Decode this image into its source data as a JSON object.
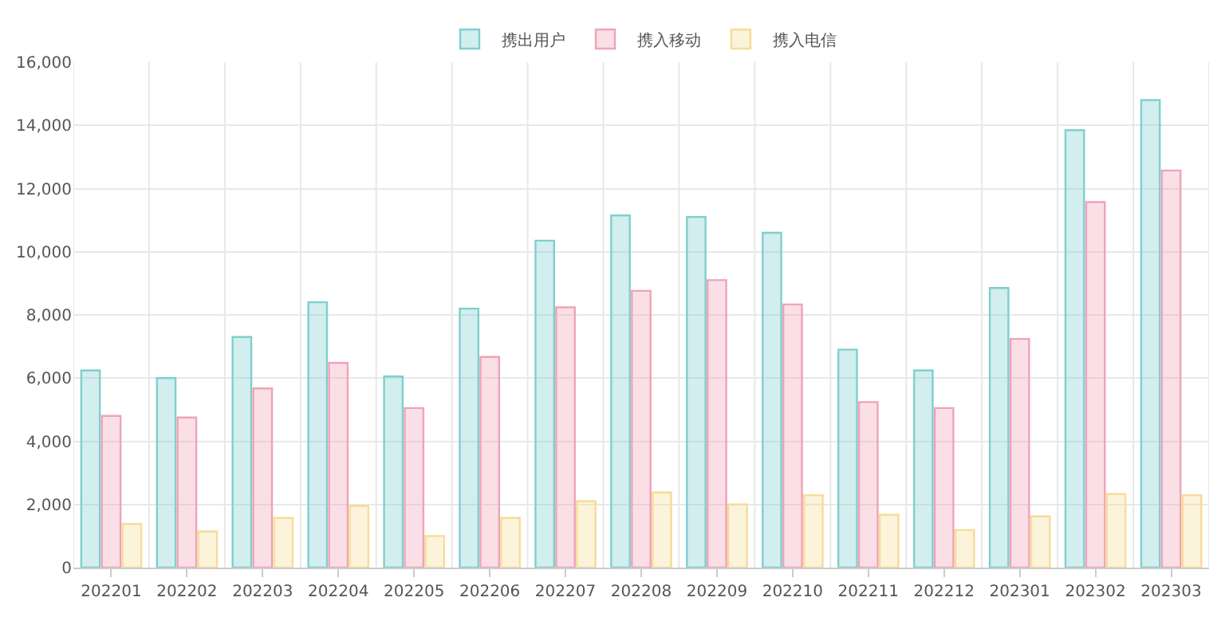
{
  "chart_data": {
    "type": "bar",
    "categories": [
      "202201",
      "202202",
      "202203",
      "202204",
      "202205",
      "202206",
      "202207",
      "202208",
      "202209",
      "202210",
      "202211",
      "202212",
      "202301",
      "202302",
      "202303"
    ],
    "series": [
      {
        "name": "携出用户",
        "color": "#7fcfcf",
        "values": [
          6240,
          6000,
          7300,
          8400,
          6050,
          8200,
          10350,
          11150,
          11100,
          10600,
          6900,
          6240,
          8850,
          13850,
          14800
        ]
      },
      {
        "name": "携入移动",
        "color": "#f0a3b8",
        "values": [
          4800,
          4750,
          5670,
          6480,
          5050,
          6670,
          8240,
          8760,
          9100,
          8330,
          5240,
          5050,
          7240,
          11570,
          12570
        ]
      },
      {
        "name": "携入电信",
        "color": "#f7dc98",
        "values": [
          1380,
          1140,
          1570,
          1950,
          1000,
          1570,
          2100,
          2380,
          2000,
          2290,
          1670,
          1190,
          1620,
          2330,
          2290
        ]
      }
    ],
    "ylim": [
      0,
      16000
    ],
    "yticks": [
      0,
      {
        "value": 2000,
        "label": "2,000"
      },
      {
        "value": 4000,
        "label": "4,000"
      },
      {
        "value": 6000,
        "label": "6,000"
      },
      {
        "value": 8000,
        "label": "8,000"
      },
      {
        "value": 10000,
        "label": "10,000"
      },
      {
        "value": 12000,
        "label": "12,000"
      },
      {
        "value": 14000,
        "label": "14,000"
      },
      {
        "value": 16000,
        "label": "16,000"
      }
    ],
    "grid": true,
    "legend": "top"
  }
}
